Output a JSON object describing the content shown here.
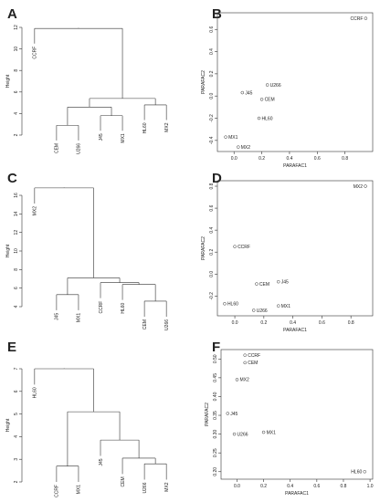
{
  "chart_data": [
    {
      "panel": "A",
      "type": "dendrogram",
      "ylabel": "Height",
      "yticks": [
        2,
        4,
        6,
        8,
        10,
        12
      ],
      "ylim": [
        2,
        12
      ],
      "leaves": [
        "CCRF",
        "CEM",
        "U266",
        "J45",
        "MX1",
        "HL60",
        "MX2"
      ],
      "merges": [
        {
          "a": "L1",
          "b": "L2",
          "h": 2.9
        },
        {
          "a": "L3",
          "b": "L4",
          "h": 3.8
        },
        {
          "a": "L5",
          "b": "L6",
          "h": 4.8
        },
        {
          "a": "M0",
          "b": "M1",
          "h": 4.6
        },
        {
          "a": "M3",
          "b": "M2",
          "h": 5.4
        },
        {
          "a": "L0",
          "b": "M4",
          "h": 11.9
        }
      ]
    },
    {
      "panel": "B",
      "type": "scatter",
      "xlabel": "PARAFAC1",
      "ylabel": "PARAFAC2",
      "xticks": [
        "0.0",
        "0.2",
        "0.4",
        "0.6",
        "0.8"
      ],
      "yticks": [
        "-0.4",
        "-0.2",
        "0.0",
        "0.2",
        "0.4",
        "0.6"
      ],
      "xlim": [
        -0.12,
        1.0
      ],
      "ylim": [
        -0.5,
        0.75
      ],
      "points": [
        {
          "label": "CCRF",
          "x": 0.95,
          "y": 0.7
        },
        {
          "label": "U266",
          "x": 0.24,
          "y": 0.1
        },
        {
          "label": "J45",
          "x": 0.06,
          "y": 0.03
        },
        {
          "label": "CEM",
          "x": 0.2,
          "y": -0.03
        },
        {
          "label": "HL60",
          "x": 0.18,
          "y": -0.2
        },
        {
          "label": "MX1",
          "x": -0.06,
          "y": -0.37
        },
        {
          "label": "MX2",
          "x": 0.03,
          "y": -0.46
        }
      ]
    },
    {
      "panel": "C",
      "type": "dendrogram",
      "ylabel": "Height",
      "yticks": [
        4,
        6,
        8,
        10,
        12,
        14,
        16
      ],
      "ylim": [
        4,
        16
      ],
      "leaves": [
        "MX2",
        "J45",
        "MX1",
        "CCRF",
        "HL60",
        "CEM",
        "U266"
      ],
      "merges": [
        {
          "a": "L1",
          "b": "L2",
          "h": 5.3
        },
        {
          "a": "L5",
          "b": "L6",
          "h": 4.6
        },
        {
          "a": "L4",
          "b": "M1",
          "h": 6.4
        },
        {
          "a": "L3",
          "b": "M2",
          "h": 6.6
        },
        {
          "a": "M0",
          "b": "M3",
          "h": 7.1
        },
        {
          "a": "L0",
          "b": "M4",
          "h": 16.8
        }
      ]
    },
    {
      "panel": "D",
      "type": "scatter",
      "xlabel": "PARAFAC1",
      "ylabel": "PARAFAC2",
      "xticks": [
        "0.0",
        "0.2",
        "0.4",
        "0.6",
        "0.8"
      ],
      "yticks": [
        "-0.2",
        "0.0",
        "0.2",
        "0.4",
        "0.6",
        "0.8"
      ],
      "xlim": [
        -0.12,
        0.95
      ],
      "ylim": [
        -0.38,
        0.85
      ],
      "points": [
        {
          "label": "MX2",
          "x": 0.9,
          "y": 0.8
        },
        {
          "label": "CCRF",
          "x": 0.0,
          "y": 0.25
        },
        {
          "label": "J45",
          "x": 0.3,
          "y": -0.07
        },
        {
          "label": "CEM",
          "x": 0.15,
          "y": -0.09
        },
        {
          "label": "HL60",
          "x": -0.07,
          "y": -0.27
        },
        {
          "label": "MX1",
          "x": 0.3,
          "y": -0.29
        },
        {
          "label": "U266",
          "x": 0.13,
          "y": -0.33
        }
      ]
    },
    {
      "panel": "E",
      "type": "dendrogram",
      "ylabel": "Height",
      "yticks": [
        2,
        3,
        4,
        5,
        6,
        7
      ],
      "ylim": [
        2,
        7
      ],
      "leaves": [
        "HL60",
        "CCRF",
        "MX1",
        "J45",
        "CEM",
        "U266",
        "MX2"
      ],
      "merges": [
        {
          "a": "L1",
          "b": "L2",
          "h": 2.7
        },
        {
          "a": "L5",
          "b": "L6",
          "h": 2.8
        },
        {
          "a": "L4",
          "b": "M1",
          "h": 3.05
        },
        {
          "a": "L3",
          "b": "M2",
          "h": 3.85
        },
        {
          "a": "M0",
          "b": "M3",
          "h": 5.1
        },
        {
          "a": "L0",
          "b": "M4",
          "h": 7.0
        }
      ]
    },
    {
      "panel": "F",
      "type": "scatter",
      "xlabel": "PARAFAC1",
      "ylabel": "PARAFAC2",
      "xticks": [
        "0.0",
        "0.2",
        "0.4",
        "0.6",
        "0.8",
        "1.0"
      ],
      "yticks": [
        "0.20",
        "0.25",
        "0.30",
        "0.35",
        "0.40",
        "0.45",
        "0.50"
      ],
      "xlim": [
        -0.12,
        1.02
      ],
      "ylim": [
        0.18,
        0.525
      ],
      "points": [
        {
          "label": "CCRF",
          "x": 0.06,
          "y": 0.51
        },
        {
          "label": "CEM",
          "x": 0.06,
          "y": 0.49
        },
        {
          "label": "MX2",
          "x": 0.0,
          "y": 0.445
        },
        {
          "label": "J45",
          "x": -0.07,
          "y": 0.355
        },
        {
          "label": "MX1",
          "x": 0.2,
          "y": 0.305
        },
        {
          "label": "U266",
          "x": -0.02,
          "y": 0.3
        },
        {
          "label": "HL60",
          "x": 0.96,
          "y": 0.2
        }
      ]
    }
  ]
}
